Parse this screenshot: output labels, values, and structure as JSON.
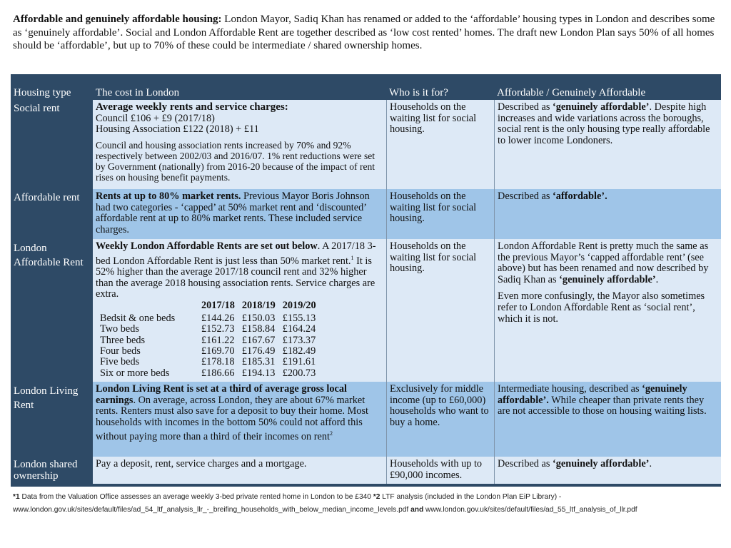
{
  "intro": {
    "bold": "Affordable and genuinely affordable housing:",
    "text": " London Mayor, Sadiq Khan has renamed or added to the ‘affordable’ housing types in London and describes some as ‘genuinely affordable’. Social and London Affordable Rent are together described as ‘low cost rented’ homes. The draft new London Plan says 50% of all homes should be ‘affordable’, but up to 70% of these could be intermediate / shared ownership homes."
  },
  "headers": [
    "Housing type",
    "The cost in London",
    "Who is it for?",
    "Affordable / Genuinely Affordable"
  ],
  "rows": [
    {
      "type": "Social rent",
      "cost_bold": "Average weekly rents and service charges:",
      "cost_lines": [
        "Council £106 + £9 (2017/18)",
        "Housing Association £122 (2018) + £11"
      ],
      "cost_para": "Council and housing association rents increased by 70% and 92% respectively between 2002/03 and 2016/07. 1% rent reductions were set by Government (nationally) from 2016-20 because of the impact of rent rises on housing benefit payments.",
      "who": "Households on the waiting list for social housing.",
      "afford_pre": "Described as ",
      "afford_bold": "‘genuinely affordable’",
      "afford_post": ". Despite high increases and wide variations across the boroughs, social rent is the only housing type really affordable to lower income Londoners."
    },
    {
      "type": "Affordable rent",
      "cost_bold": "Rents at up to 80% market rents.",
      "cost_text": " Previous Mayor Boris Johnson had two categories - ‘capped’ at 50% market rent and ‘discounted’ affordable rent at up to 80% market rents. These included service charges.",
      "who": "Households on the waiting list for social housing.",
      "afford_pre": "Described as ",
      "afford_bold": "‘affordable’."
    },
    {
      "type": "London Affordable Rent",
      "cost_bold": "Weekly London Affordable Rents are set out below",
      "cost_text": ". A 2017/18 3-bed London Affordable Rent is just less than 50% market rent.",
      "cost_sup": "1",
      "cost_text2": " It is 52% higher than the average 2017/18 council rent and 32% higher than the average 2018 housing association rents. Service charges are extra.",
      "rent_years": [
        "2017/18",
        "2018/19",
        "2019/20"
      ],
      "rent_rows": [
        [
          "Bedsit & one beds",
          "£144.26",
          "£150.03",
          "£155.13"
        ],
        [
          "Two beds",
          "£152.73",
          "£158.84",
          "£164.24"
        ],
        [
          "Three beds",
          "£161.22",
          "£167.67",
          "£173.37"
        ],
        [
          "Four beds",
          "£169.70",
          "£176.49",
          "£182.49"
        ],
        [
          "Five beds",
          "£178.18",
          "£185.31",
          "£191.61"
        ],
        [
          "Six or more beds",
          "£186.66",
          "£194.13",
          "£200.73"
        ]
      ],
      "who": "Households on the waiting list for social housing.",
      "afford_pre": "London Affordable Rent  is pretty much the same as the previous Mayor’s ‘capped affordable rent’ (see above) but has been renamed and now described by Sadiq Khan as ",
      "afford_bold": "‘genuinely affordable’",
      "afford_post": ".",
      "afford_para": "Even more confusingly, the Mayor also sometimes refer to London Affordable Rent as ‘social rent’, which it is not."
    },
    {
      "type": "London Living Rent",
      "cost_bold": "London Living Rent is set at a third of average gross local earnings",
      "cost_text": ". On average, across London, they are about 67% market rents. Renters must also save for a deposit to buy their home. Most households with incomes in the bottom 50% could not afford this without paying more than a third of their incomes on rent",
      "cost_sup": "2",
      "who": "Exclusively for middle income (up to £60,000) households who want to buy a home.",
      "afford_pre": "Intermediate housing, described as ",
      "afford_bold": "‘genuinely affordable’.",
      "afford_post": " While cheaper than private rents they are not accessible to those on housing waiting lists."
    },
    {
      "type": "London shared ownership",
      "cost_text": "Pay a deposit, rent, service charges and a mortgage.",
      "who": "Households with up to £90,000 incomes.",
      "afford_pre": "Described as ",
      "afford_bold": "‘genuinely affordable’",
      "afford_post": "."
    }
  ],
  "footnote": {
    "m1": "*1",
    "t1": " Data from the Valuation Office assesses an average weekly 3-bed private rented home in London to be £340 ",
    "m2": "*2",
    "t2": " LTF analysis (included in the London Plan EiP Library) -  www.london.gov.uk/sites/default/files/ad_54_ltf_analysis_llr_-_breifing_households_with_below_median_income_levels.pdf ",
    "and": "and",
    "t3": " www.london.gov.uk/sites/default/files/ad_55_ltf_analysis_of_llr.pdf"
  }
}
